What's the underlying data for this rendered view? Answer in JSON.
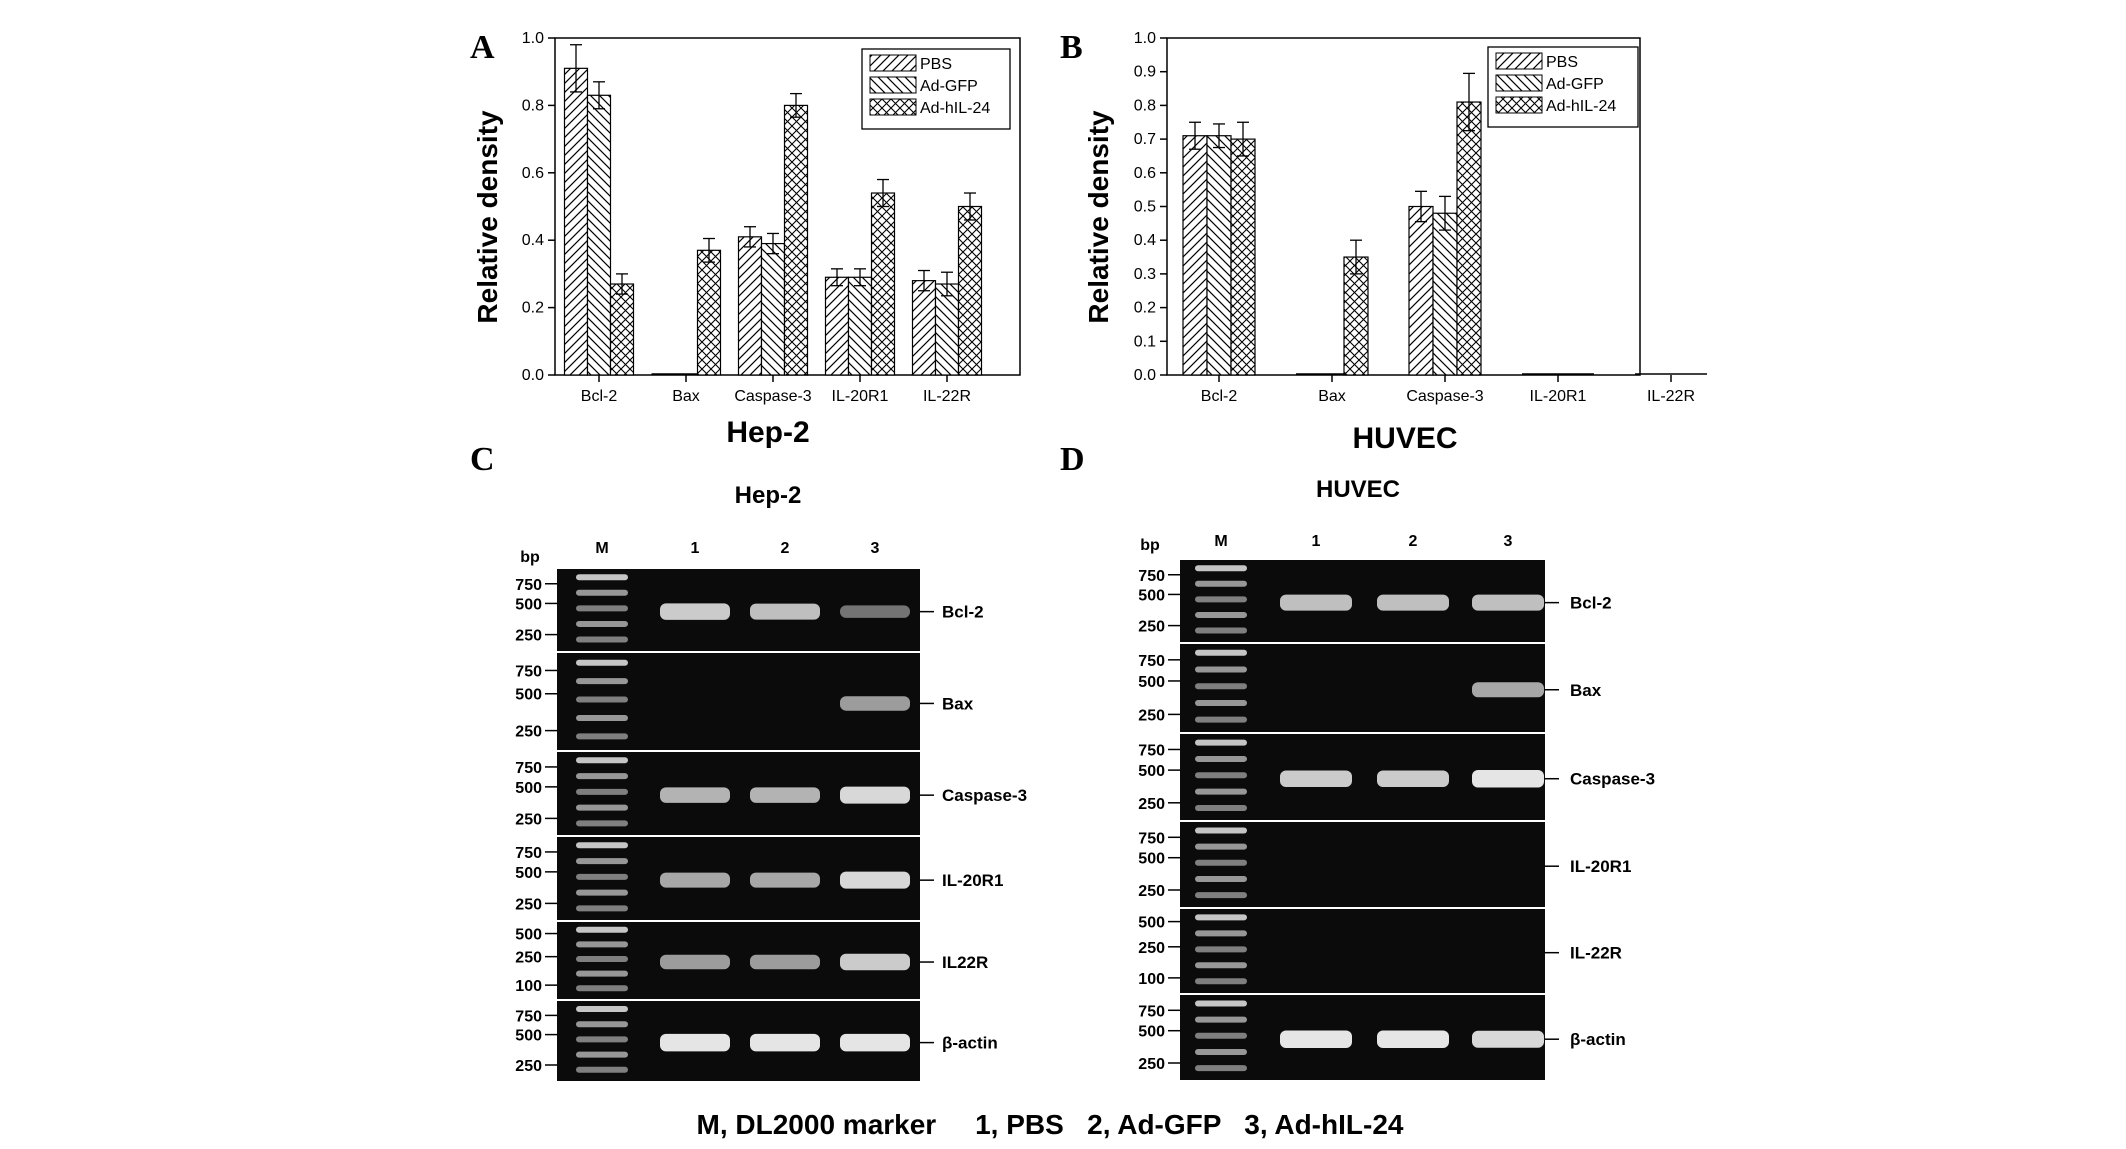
{
  "panels": {
    "A": "A",
    "B": "B",
    "C": "C",
    "D": "D"
  },
  "legend_labels": [
    "PBS",
    "Ad-GFP",
    "Ad-hIL-24"
  ],
  "chart_data": [
    {
      "type": "bar",
      "panel": "A",
      "xlabel": "Hep-2",
      "ylabel": "Relative density",
      "categories": [
        "Bcl-2",
        "Bax",
        "Caspase-3",
        "IL-20R1",
        "IL-22R"
      ],
      "ylim": [
        0,
        1.0
      ],
      "yticks": [
        0.0,
        0.2,
        0.4,
        0.6,
        0.8,
        1.0
      ],
      "ytick_labels": [
        "0.0",
        "0.2",
        "0.4",
        "0.6",
        "0.8",
        "1.0"
      ],
      "legend_position": "top-right",
      "series": [
        {
          "name": "PBS",
          "pattern": "diag-right",
          "values": [
            0.91,
            0.0,
            0.41,
            0.29,
            0.28
          ],
          "errors": [
            0.07,
            0.0,
            0.03,
            0.025,
            0.03
          ]
        },
        {
          "name": "Ad-GFP",
          "pattern": "diag-left",
          "values": [
            0.83,
            0.0,
            0.39,
            0.29,
            0.27
          ],
          "errors": [
            0.04,
            0.0,
            0.03,
            0.025,
            0.035
          ]
        },
        {
          "name": "Ad-hIL-24",
          "pattern": "cross",
          "values": [
            0.27,
            0.37,
            0.8,
            0.54,
            0.5
          ],
          "errors": [
            0.03,
            0.035,
            0.035,
            0.04,
            0.04
          ]
        }
      ]
    },
    {
      "type": "bar",
      "panel": "B",
      "xlabel": "HUVEC",
      "ylabel": "Relative density",
      "categories": [
        "Bcl-2",
        "Bax",
        "Caspase-3",
        "IL-20R1",
        "IL-22R"
      ],
      "ylim": [
        0,
        1.0
      ],
      "yticks": [
        0.0,
        0.1,
        0.2,
        0.3,
        0.4,
        0.5,
        0.6,
        0.7,
        0.8,
        0.9,
        1.0
      ],
      "ytick_labels": [
        "0.0",
        "0.1",
        "0.2",
        "0.3",
        "0.4",
        "0.5",
        "0.6",
        "0.7",
        "0.8",
        "0.9",
        "1.0"
      ],
      "legend_position": "top-right",
      "series": [
        {
          "name": "PBS",
          "pattern": "diag-right",
          "values": [
            0.71,
            0.0,
            0.5,
            0.0,
            0.0
          ],
          "errors": [
            0.04,
            0.0,
            0.045,
            0.0,
            0.0
          ]
        },
        {
          "name": "Ad-GFP",
          "pattern": "diag-left",
          "values": [
            0.71,
            0.0,
            0.48,
            0.0,
            0.0
          ],
          "errors": [
            0.035,
            0.0,
            0.05,
            0.0,
            0.0
          ]
        },
        {
          "name": "Ad-hIL-24",
          "pattern": "cross",
          "values": [
            0.7,
            0.35,
            0.81,
            0.0,
            0.0
          ],
          "errors": [
            0.05,
            0.05,
            0.085,
            0.0,
            0.0
          ]
        }
      ]
    }
  ],
  "gel_C": {
    "title": "Hep-2",
    "bp_label": "bp",
    "marker_label": "M",
    "lane_labels": [
      "1",
      "2",
      "3"
    ],
    "rows": [
      {
        "gene": "Bcl-2",
        "ladder": [
          "750",
          "500",
          "250"
        ],
        "bands": [
          0.85,
          0.8,
          0.45
        ]
      },
      {
        "gene": "Bax",
        "ladder": [
          "750",
          "500",
          "250"
        ],
        "bands": [
          0.0,
          0.0,
          0.65
        ]
      },
      {
        "gene": "Caspase-3",
        "ladder": [
          "750",
          "500",
          "250"
        ],
        "bands": [
          0.75,
          0.75,
          0.9
        ]
      },
      {
        "gene": "IL-20R1",
        "ladder": [
          "750",
          "500",
          "250"
        ],
        "bands": [
          0.7,
          0.7,
          0.9
        ]
      },
      {
        "gene": "IL22R",
        "ladder": [
          "500",
          "250",
          "100"
        ],
        "bands": [
          0.65,
          0.65,
          0.85
        ]
      },
      {
        "gene": "β-actin",
        "ladder": [
          "750",
          "500",
          "250"
        ],
        "bands": [
          0.95,
          0.95,
          0.95
        ]
      }
    ]
  },
  "gel_D": {
    "title": "HUVEC",
    "bp_label": "bp",
    "marker_label": "M",
    "lane_labels": [
      "1",
      "2",
      "3"
    ],
    "rows": [
      {
        "gene": "Bcl-2",
        "ladder": [
          "750",
          "500",
          "250"
        ],
        "bands": [
          0.8,
          0.8,
          0.8
        ]
      },
      {
        "gene": "Bax",
        "ladder": [
          "750",
          "500",
          "250"
        ],
        "bands": [
          0.0,
          0.0,
          0.7
        ]
      },
      {
        "gene": "Caspase-3",
        "ladder": [
          "750",
          "500",
          "250"
        ],
        "bands": [
          0.85,
          0.85,
          0.95
        ]
      },
      {
        "gene": "IL-20R1",
        "ladder": [
          "750",
          "500",
          "250"
        ],
        "bands": [
          0.0,
          0.0,
          0.0
        ]
      },
      {
        "gene": "IL-22R",
        "ladder": [
          "500",
          "250",
          "100"
        ],
        "bands": [
          0.0,
          0.0,
          0.0
        ]
      },
      {
        "gene": "β-actin",
        "ladder": [
          "750",
          "500",
          "250"
        ],
        "bands": [
          0.95,
          0.95,
          0.9
        ]
      }
    ]
  },
  "caption": "M, DL2000 marker     1, PBS   2, Ad-GFP   3, Ad-hIL-24"
}
